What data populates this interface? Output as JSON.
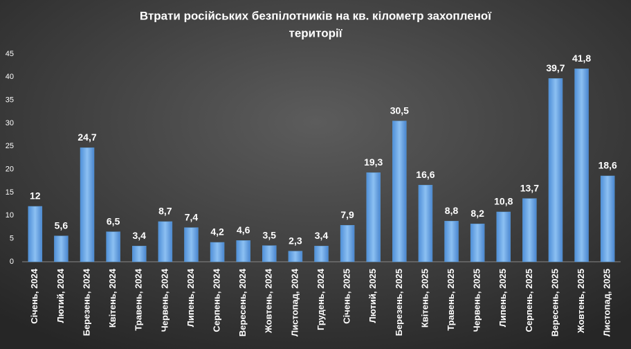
{
  "chart_data": {
    "type": "bar",
    "title": [
      "Втрати російських  безпілотників  на кв. кілометр  захопленої",
      "території"
    ],
    "categories": [
      "Січень, 2024",
      "Лютий, 2024",
      "Березень, 2024",
      "Квітень, 2024",
      "Травень, 2024",
      "Червень, 2024",
      "Липень, 2024",
      "Серпень, 2024",
      "Вересень, 2024",
      "Жовтень, 2024",
      "Листопад, 2024",
      "Грудень, 2024",
      "Січень, 2025",
      "Лютий, 2025",
      "Березень, 2025",
      "Квітень, 2025",
      "Травень, 2025",
      "Червень, 2025",
      "Липень, 2025",
      "Серпень, 2025",
      "Вересень, 2025",
      "Жовтень, 2025",
      "Листопад, 2025"
    ],
    "values": [
      12,
      5.6,
      24.7,
      6.5,
      3.4,
      8.7,
      7.4,
      4.2,
      4.6,
      3.5,
      2.3,
      3.4,
      7.9,
      19.3,
      30.5,
      16.6,
      8.8,
      8.2,
      10.8,
      13.7,
      39.7,
      41.8,
      18.6
    ],
    "value_labels": [
      "12",
      "5,6",
      "24,7",
      "6,5",
      "3,4",
      "8,7",
      "7,4",
      "4,2",
      "4,6",
      "3,5",
      "2,3",
      "3,4",
      "7,9",
      "19,3",
      "30,5",
      "16,6",
      "8,8",
      "8,2",
      "10,8",
      "13,7",
      "39,7",
      "41,8",
      "18,6"
    ],
    "color": "#5b9bd5",
    "ylim": [
      0,
      45
    ],
    "yticks": [
      0,
      5,
      10,
      15,
      20,
      25,
      30,
      35,
      40,
      45
    ],
    "grid": false
  }
}
